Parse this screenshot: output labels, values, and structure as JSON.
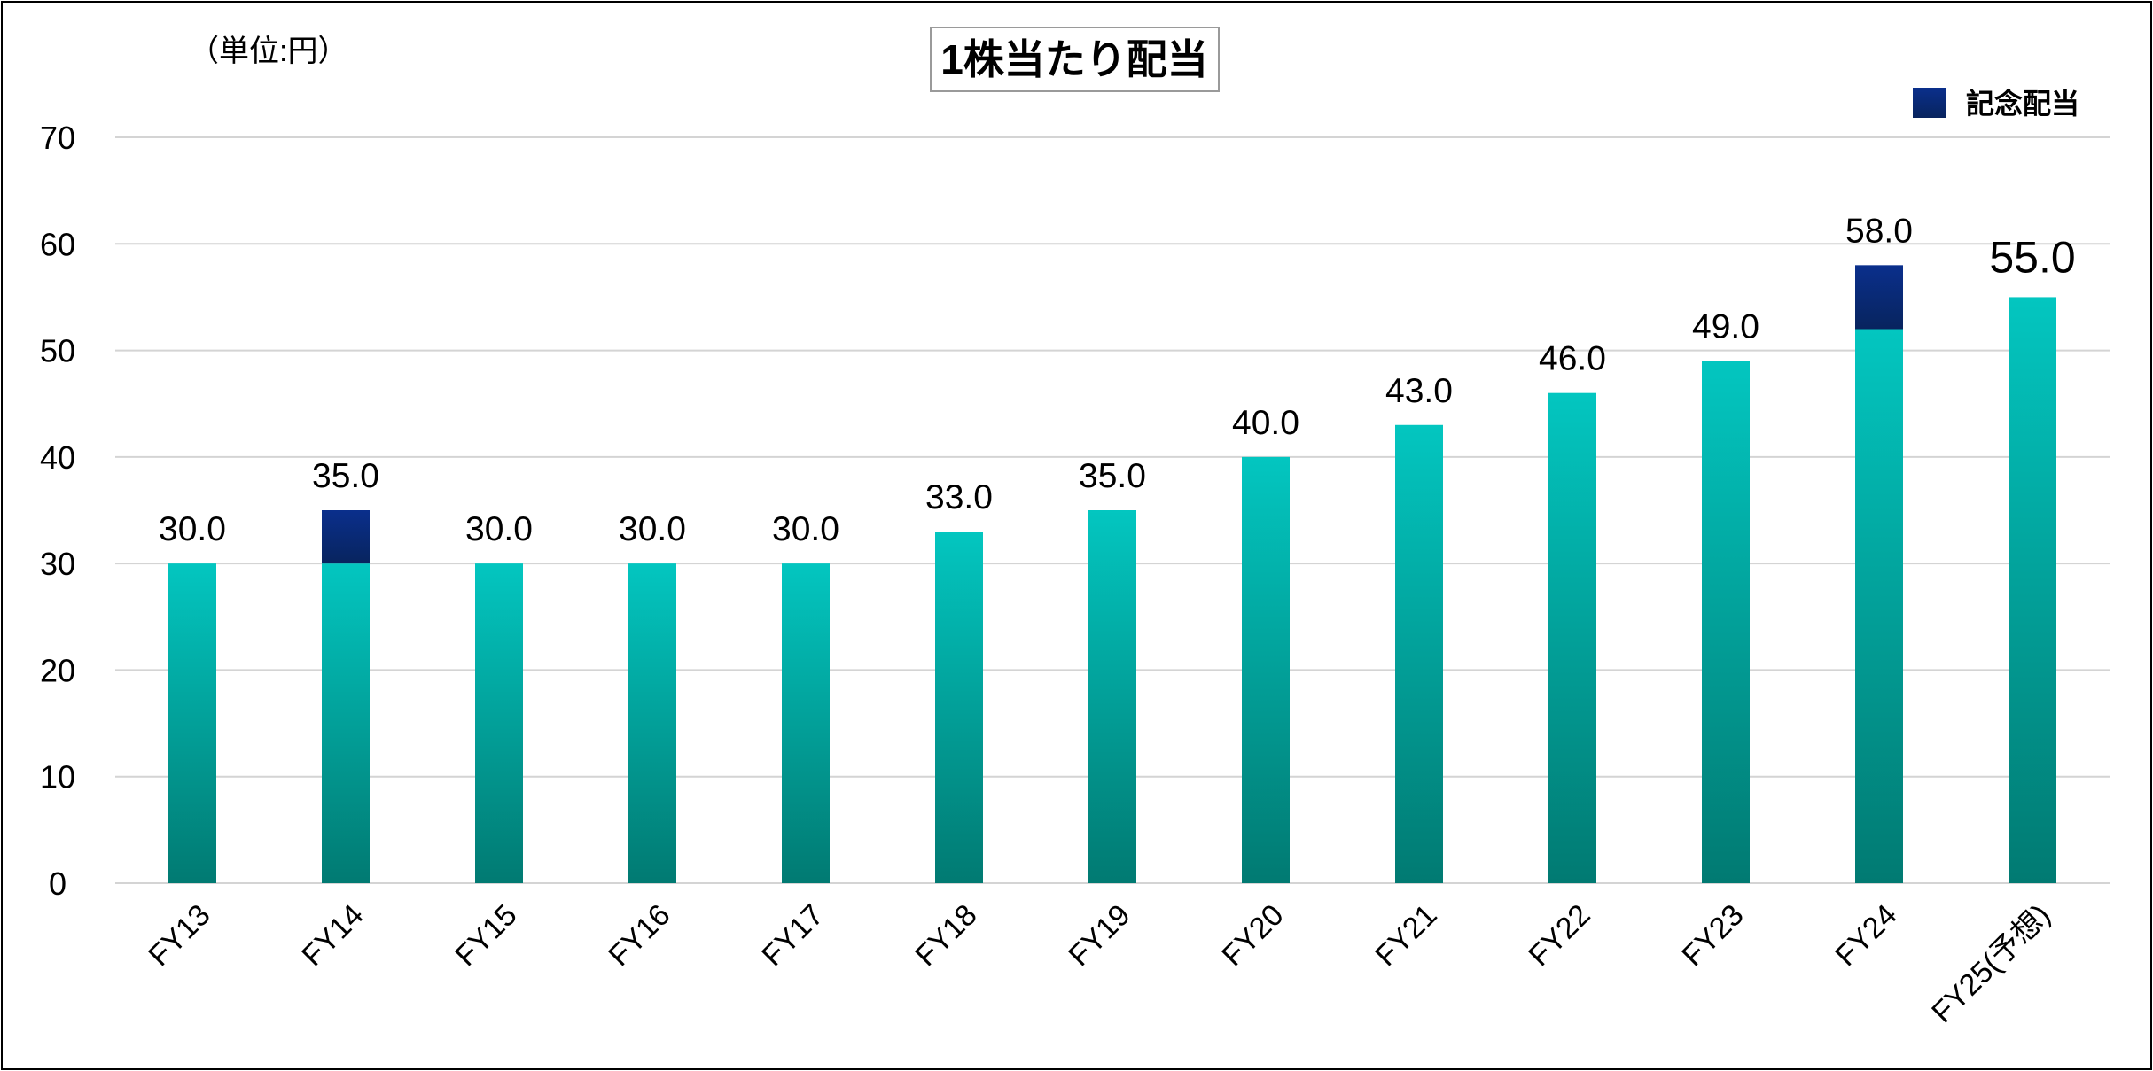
{
  "chart_data": {
    "type": "bar",
    "stacked": true,
    "title": "1株当たり配当",
    "unit_label": "（単位:円）",
    "categories": [
      "FY13",
      "FY14",
      "FY15",
      "FY16",
      "FY17",
      "FY18",
      "FY19",
      "FY20",
      "FY21",
      "FY22",
      "FY23",
      "FY24",
      "FY25(予想)"
    ],
    "series": [
      {
        "values": [
          30,
          30,
          30,
          30,
          30,
          33,
          35,
          40,
          43,
          46,
          49,
          52,
          55
        ],
        "color_top": "#03c6c0",
        "color_bottom": "#017a72"
      },
      {
        "name": "記念配当",
        "values": [
          0,
          5,
          0,
          0,
          0,
          0,
          0,
          0,
          0,
          0,
          0,
          6,
          0
        ],
        "color_top": "#0a2f8c",
        "color_bottom": "#08245e"
      }
    ],
    "totals": [
      "30.0",
      "35.0",
      "30.0",
      "30.0",
      "30.0",
      "33.0",
      "35.0",
      "40.0",
      "43.0",
      "46.0",
      "49.0",
      "58.0",
      "55.0"
    ],
    "ylim": [
      0,
      70
    ],
    "yticks": [
      0,
      10,
      20,
      30,
      40,
      50,
      60,
      70
    ],
    "grid": true,
    "legend_position": "top-right",
    "forecast_index": 12
  }
}
